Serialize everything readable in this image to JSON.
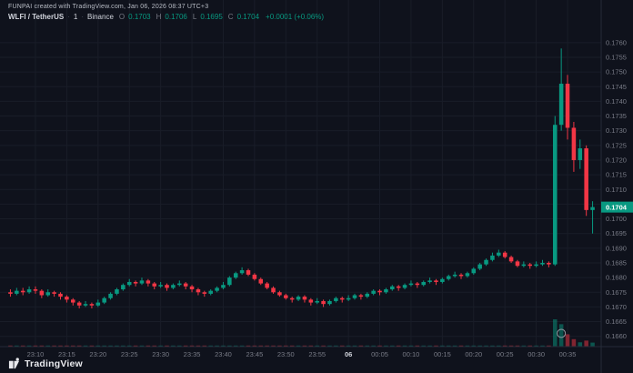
{
  "credit": {
    "text": "FUNPAI created with TradingView.com, Jan 06, 2026 08:37 UTC+3"
  },
  "legend": {
    "symbol": "WLFI / TetherUS",
    "sep": "·",
    "interval": "1",
    "exchange": "Binance",
    "o_label": "O",
    "o": "0.1703",
    "h_label": "H",
    "h": "0.1706",
    "l_label": "L",
    "l": "0.1695",
    "c_label": "C",
    "c": "0.1704",
    "change": "+0.0001 (+0.06%)"
  },
  "footer": {
    "brand": "TradingView"
  },
  "colors": {
    "background": "#0f121c",
    "grid": "#191d28",
    "axis_line": "#262b38",
    "axis_text": "#787b86",
    "axis_text_bold": "#d1d4dc",
    "up": "#089981",
    "down": "#f23645",
    "volume_up": "#0899817f",
    "volume_down": "#f236457f",
    "badge_bg": "#089981",
    "badge_text": "#ffffff",
    "annotation": "#9598a1"
  },
  "price_axis": {
    "labels": [
      "0.1760",
      "0.1755",
      "0.1750",
      "0.1745",
      "0.1740",
      "0.1735",
      "0.1730",
      "0.1725",
      "0.1720",
      "0.1715",
      "0.1710",
      "0.1705",
      "0.1700",
      "0.1695",
      "0.1690",
      "0.1685",
      "0.1680",
      "0.1675",
      "0.1670",
      "0.1665",
      "0.1660"
    ],
    "last_price": "0.1704"
  },
  "time_axis": {
    "labels": [
      {
        "text": "23:10",
        "i": 4
      },
      {
        "text": "23:15",
        "i": 9
      },
      {
        "text": "23:20",
        "i": 14
      },
      {
        "text": "23:25",
        "i": 19
      },
      {
        "text": "23:30",
        "i": 24
      },
      {
        "text": "23:35",
        "i": 29
      },
      {
        "text": "23:40",
        "i": 34
      },
      {
        "text": "23:45",
        "i": 39
      },
      {
        "text": "23:50",
        "i": 44
      },
      {
        "text": "23:55",
        "i": 49
      },
      {
        "text": "06",
        "i": 54,
        "bold": true
      },
      {
        "text": "00:05",
        "i": 59
      },
      {
        "text": "00:10",
        "i": 64
      },
      {
        "text": "00:15",
        "i": 69
      },
      {
        "text": "00:20",
        "i": 74
      },
      {
        "text": "00:25",
        "i": 79
      },
      {
        "text": "00:30",
        "i": 84
      },
      {
        "text": "00:35",
        "i": 89
      }
    ]
  },
  "annotations": {
    "circle": {
      "candle_index": 88,
      "price": 0.1661
    }
  },
  "chart_data": {
    "type": "candlestick",
    "title": "WLFI / TetherUS · 1 · Binance",
    "start_time": "23:06",
    "interval_minutes": 1,
    "ylim": [
      0.16565,
      0.17745
    ],
    "grid": true,
    "last_price": 0.1704,
    "candles": [
      [
        0.1675,
        0.1676,
        0.16735,
        0.16745,
        12
      ],
      [
        0.16745,
        0.16765,
        0.1674,
        0.16755,
        9
      ],
      [
        0.16755,
        0.16765,
        0.1674,
        0.1675,
        11
      ],
      [
        0.1675,
        0.1677,
        0.16745,
        0.1676,
        8
      ],
      [
        0.1676,
        0.1677,
        0.16745,
        0.16755,
        10
      ],
      [
        0.16755,
        0.1676,
        0.1673,
        0.1674,
        14
      ],
      [
        0.1674,
        0.1676,
        0.16735,
        0.1675,
        9
      ],
      [
        0.1675,
        0.16755,
        0.16735,
        0.16745,
        7
      ],
      [
        0.16745,
        0.1675,
        0.16725,
        0.16735,
        13
      ],
      [
        0.16735,
        0.1674,
        0.16715,
        0.16725,
        16
      ],
      [
        0.16725,
        0.1673,
        0.16705,
        0.16715,
        18
      ],
      [
        0.16715,
        0.1672,
        0.16695,
        0.16705,
        21
      ],
      [
        0.16705,
        0.1672,
        0.167,
        0.1671,
        12
      ],
      [
        0.1671,
        0.16715,
        0.16695,
        0.16705,
        10
      ],
      [
        0.16705,
        0.16725,
        0.167,
        0.16715,
        11
      ],
      [
        0.16715,
        0.16735,
        0.1671,
        0.1673,
        15
      ],
      [
        0.1673,
        0.1675,
        0.16725,
        0.16745,
        17
      ],
      [
        0.16745,
        0.16765,
        0.1674,
        0.1676,
        19
      ],
      [
        0.1676,
        0.1678,
        0.16755,
        0.16775,
        22
      ],
      [
        0.16775,
        0.16795,
        0.1677,
        0.16785,
        18
      ],
      [
        0.16785,
        0.1679,
        0.1677,
        0.1678,
        9
      ],
      [
        0.1678,
        0.168,
        0.16775,
        0.1679,
        12
      ],
      [
        0.1679,
        0.16795,
        0.1677,
        0.1678,
        10
      ],
      [
        0.1678,
        0.16785,
        0.1676,
        0.1677,
        9
      ],
      [
        0.1677,
        0.16785,
        0.16765,
        0.16775,
        7
      ],
      [
        0.16775,
        0.1678,
        0.16755,
        0.16765,
        8
      ],
      [
        0.16765,
        0.1678,
        0.1676,
        0.16775,
        9
      ],
      [
        0.16775,
        0.1679,
        0.1677,
        0.1678,
        10
      ],
      [
        0.1678,
        0.16785,
        0.1676,
        0.1677,
        8
      ],
      [
        0.1677,
        0.16775,
        0.1675,
        0.1676,
        9
      ],
      [
        0.1676,
        0.16765,
        0.1674,
        0.1675,
        11
      ],
      [
        0.1675,
        0.16755,
        0.16735,
        0.16745,
        8
      ],
      [
        0.16745,
        0.1676,
        0.1674,
        0.16755,
        7
      ],
      [
        0.16755,
        0.1677,
        0.1675,
        0.16765,
        9
      ],
      [
        0.16765,
        0.16785,
        0.1676,
        0.16775,
        12
      ],
      [
        0.16775,
        0.16805,
        0.1677,
        0.168,
        20
      ],
      [
        0.168,
        0.1682,
        0.16795,
        0.16815,
        24
      ],
      [
        0.16815,
        0.16835,
        0.1681,
        0.16825,
        19
      ],
      [
        0.16825,
        0.1683,
        0.16805,
        0.1681,
        13
      ],
      [
        0.1681,
        0.16815,
        0.1679,
        0.16795,
        12
      ],
      [
        0.16795,
        0.168,
        0.16775,
        0.1678,
        11
      ],
      [
        0.1678,
        0.16785,
        0.1676,
        0.16765,
        10
      ],
      [
        0.16765,
        0.1677,
        0.16745,
        0.1675,
        12
      ],
      [
        0.1675,
        0.16755,
        0.16735,
        0.1674,
        9
      ],
      [
        0.1674,
        0.16745,
        0.16725,
        0.1673,
        8
      ],
      [
        0.1673,
        0.16735,
        0.16715,
        0.16725,
        7
      ],
      [
        0.16725,
        0.1674,
        0.1672,
        0.16735,
        6
      ],
      [
        0.16735,
        0.1674,
        0.16715,
        0.16725,
        8
      ],
      [
        0.16725,
        0.1673,
        0.16705,
        0.16715,
        10
      ],
      [
        0.16715,
        0.1673,
        0.1671,
        0.1672,
        7
      ],
      [
        0.1672,
        0.16725,
        0.167,
        0.1671,
        9
      ],
      [
        0.1671,
        0.16725,
        0.16705,
        0.1672,
        6
      ],
      [
        0.1672,
        0.16735,
        0.16715,
        0.1673,
        8
      ],
      [
        0.1673,
        0.16735,
        0.16715,
        0.16725,
        7
      ],
      [
        0.16725,
        0.1674,
        0.1672,
        0.1673,
        9
      ],
      [
        0.1673,
        0.16745,
        0.16725,
        0.1674,
        8
      ],
      [
        0.1674,
        0.16745,
        0.16725,
        0.16735,
        7
      ],
      [
        0.16735,
        0.1675,
        0.1673,
        0.16745,
        9
      ],
      [
        0.16745,
        0.1676,
        0.1674,
        0.16755,
        10
      ],
      [
        0.16755,
        0.1676,
        0.1674,
        0.1675,
        8
      ],
      [
        0.1675,
        0.16765,
        0.16745,
        0.1676,
        9
      ],
      [
        0.1676,
        0.16775,
        0.16755,
        0.1677,
        11
      ],
      [
        0.1677,
        0.16775,
        0.16755,
        0.16765,
        8
      ],
      [
        0.16765,
        0.1678,
        0.1676,
        0.16775,
        9
      ],
      [
        0.16775,
        0.1679,
        0.1677,
        0.1678,
        10
      ],
      [
        0.1678,
        0.16785,
        0.16765,
        0.16775,
        7
      ],
      [
        0.16775,
        0.1679,
        0.1677,
        0.16785,
        9
      ],
      [
        0.16785,
        0.168,
        0.1678,
        0.1679,
        11
      ],
      [
        0.1679,
        0.16795,
        0.16775,
        0.16785,
        8
      ],
      [
        0.16785,
        0.168,
        0.1678,
        0.16795,
        10
      ],
      [
        0.16795,
        0.1681,
        0.1679,
        0.16805,
        12
      ],
      [
        0.16805,
        0.1682,
        0.168,
        0.1681,
        13
      ],
      [
        0.1681,
        0.16815,
        0.16795,
        0.16805,
        9
      ],
      [
        0.16805,
        0.1682,
        0.168,
        0.16815,
        11
      ],
      [
        0.16815,
        0.16835,
        0.1681,
        0.1683,
        16
      ],
      [
        0.1683,
        0.1685,
        0.16825,
        0.16845,
        21
      ],
      [
        0.16845,
        0.16865,
        0.1684,
        0.1686,
        26
      ],
      [
        0.1686,
        0.16885,
        0.16855,
        0.16875,
        31
      ],
      [
        0.16875,
        0.16895,
        0.1687,
        0.16885,
        24
      ],
      [
        0.16885,
        0.1689,
        0.16865,
        0.1687,
        18
      ],
      [
        0.1687,
        0.16875,
        0.1685,
        0.16855,
        15
      ],
      [
        0.16855,
        0.1686,
        0.16835,
        0.1684,
        14
      ],
      [
        0.1684,
        0.16855,
        0.16835,
        0.16845,
        10
      ],
      [
        0.16845,
        0.1685,
        0.1683,
        0.1684,
        9
      ],
      [
        0.1684,
        0.16855,
        0.16835,
        0.16845,
        8
      ],
      [
        0.16845,
        0.1686,
        0.1684,
        0.1685,
        10
      ],
      [
        0.1685,
        0.16855,
        0.16835,
        0.16845,
        9
      ],
      [
        0.16845,
        0.1735,
        0.1684,
        0.1732,
        950
      ],
      [
        0.1732,
        0.1758,
        0.173,
        0.1746,
        780
      ],
      [
        0.1746,
        0.1749,
        0.1727,
        0.1731,
        430
      ],
      [
        0.1731,
        0.1733,
        0.1716,
        0.172,
        260
      ],
      [
        0.172,
        0.1727,
        0.1717,
        0.1724,
        150
      ],
      [
        0.1724,
        0.1725,
        0.1701,
        0.1703,
        210
      ],
      [
        0.1703,
        0.1706,
        0.1695,
        0.1704,
        140
      ]
    ]
  }
}
